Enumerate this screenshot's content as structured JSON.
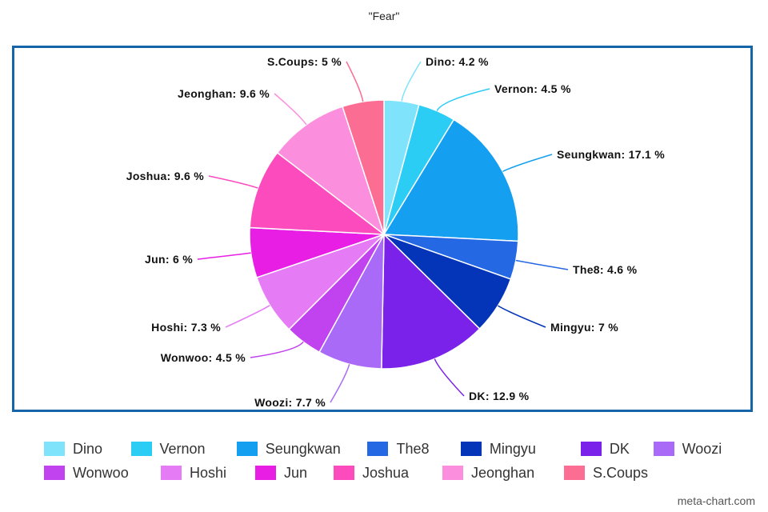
{
  "chart_data": {
    "type": "pie",
    "title": "\"Fear\"",
    "slices": [
      {
        "name": "Dino",
        "value": 4.2,
        "label": "Dino: 4.2 %",
        "color": "#7fe3fb"
      },
      {
        "name": "Vernon",
        "value": 4.5,
        "label": "Vernon: 4.5 %",
        "color": "#2ccdf5"
      },
      {
        "name": "Seungkwan",
        "value": 17.1,
        "label": "Seungkwan: 17.1 %",
        "color": "#149ff0"
      },
      {
        "name": "The8",
        "value": 4.6,
        "label": "The8: 4.6 %",
        "color": "#2568e4"
      },
      {
        "name": "Mingyu",
        "value": 7,
        "label": "Mingyu: 7 %",
        "color": "#0434b8"
      },
      {
        "name": "DK",
        "value": 12.9,
        "label": "DK: 12.9 %",
        "color": "#7b22ea"
      },
      {
        "name": "Woozi",
        "value": 7.7,
        "label": "Woozi: 7.7 %",
        "color": "#a96af8"
      },
      {
        "name": "Wonwoo",
        "value": 4.5,
        "label": "Wonwoo: 4.5 %",
        "color": "#c142ef"
      },
      {
        "name": "Hoshi",
        "value": 7.3,
        "label": "Hoshi: 7.3 %",
        "color": "#e67cf5"
      },
      {
        "name": "Jun",
        "value": 6,
        "label": "Jun: 6 %",
        "color": "#e81ee4"
      },
      {
        "name": "Joshua",
        "value": 9.6,
        "label": "Joshua: 9.6 %",
        "color": "#fb4bbd"
      },
      {
        "name": "Jeonghan",
        "value": 9.6,
        "label": "Jeonghan: 9.6 %",
        "color": "#fc8fdd"
      },
      {
        "name": "S.Coups",
        "value": 5,
        "label": "S.Coups: 5 %",
        "color": "#fc6d94"
      }
    ],
    "legend": "bottom"
  },
  "legend_rows": [
    [
      {
        "label": "Dino",
        "color": "#7fe3fb"
      },
      {
        "label": "Vernon",
        "color": "#2ccdf5"
      },
      {
        "label": "Seungkwan",
        "color": "#149ff0"
      },
      {
        "label": "The8",
        "color": "#2568e4"
      },
      {
        "label": "Mingyu",
        "color": "#0434b8"
      },
      {
        "label": "DK",
        "color": "#7b22ea"
      },
      {
        "label": "Woozi",
        "color": "#a96af8"
      }
    ],
    [
      {
        "label": "Wonwoo",
        "color": "#c142ef"
      },
      {
        "label": "Hoshi",
        "color": "#e67cf5"
      },
      {
        "label": "Jun",
        "color": "#e81ee4"
      },
      {
        "label": "Joshua",
        "color": "#fb4bbd"
      },
      {
        "label": "Jeonghan",
        "color": "#fc8fdd"
      },
      {
        "label": "S.Coups",
        "color": "#fc6d94"
      }
    ]
  ],
  "watermark": "meta-chart.com",
  "frame_color": "#1565a8"
}
